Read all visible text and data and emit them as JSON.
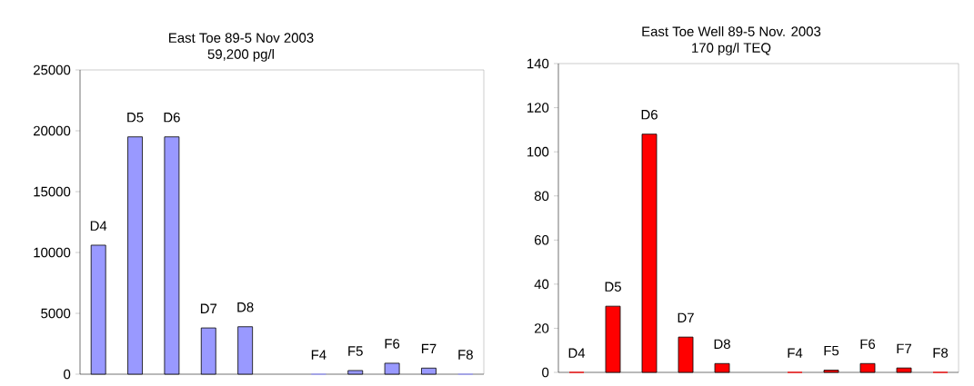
{
  "chart_data": [
    {
      "type": "bar",
      "title": "East Toe 89-5 Nov 2003",
      "subtitle": "59,200 pg/l",
      "categories": [
        "D4",
        "D5",
        "D6",
        "D7",
        "D8",
        null,
        "F4",
        "F5",
        "F6",
        "F7",
        "F8"
      ],
      "values": [
        10600,
        19500,
        19500,
        3800,
        3900,
        null,
        0,
        300,
        900,
        500,
        0
      ],
      "color": "#9999ff",
      "ylim": [
        0,
        25000
      ],
      "yticks": [
        0,
        5000,
        10000,
        15000,
        20000,
        25000
      ],
      "tick_labels": "y"
    },
    {
      "type": "bar",
      "title": "East Toe Well 89-5 Nov. 2003",
      "subtitle": "170 pg/l TEQ",
      "categories": [
        "D4",
        "D5",
        "D6",
        "D7",
        "D8",
        null,
        "F4",
        "F5",
        "F6",
        "F7",
        "F8"
      ],
      "values": [
        0,
        30,
        108,
        16,
        4,
        null,
        0,
        1,
        4,
        2,
        0
      ],
      "color": "#ff0000",
      "ylim": [
        0,
        140
      ],
      "yticks": [
        0,
        20,
        40,
        60,
        80,
        100,
        120,
        140
      ],
      "tick_labels": "y"
    }
  ]
}
